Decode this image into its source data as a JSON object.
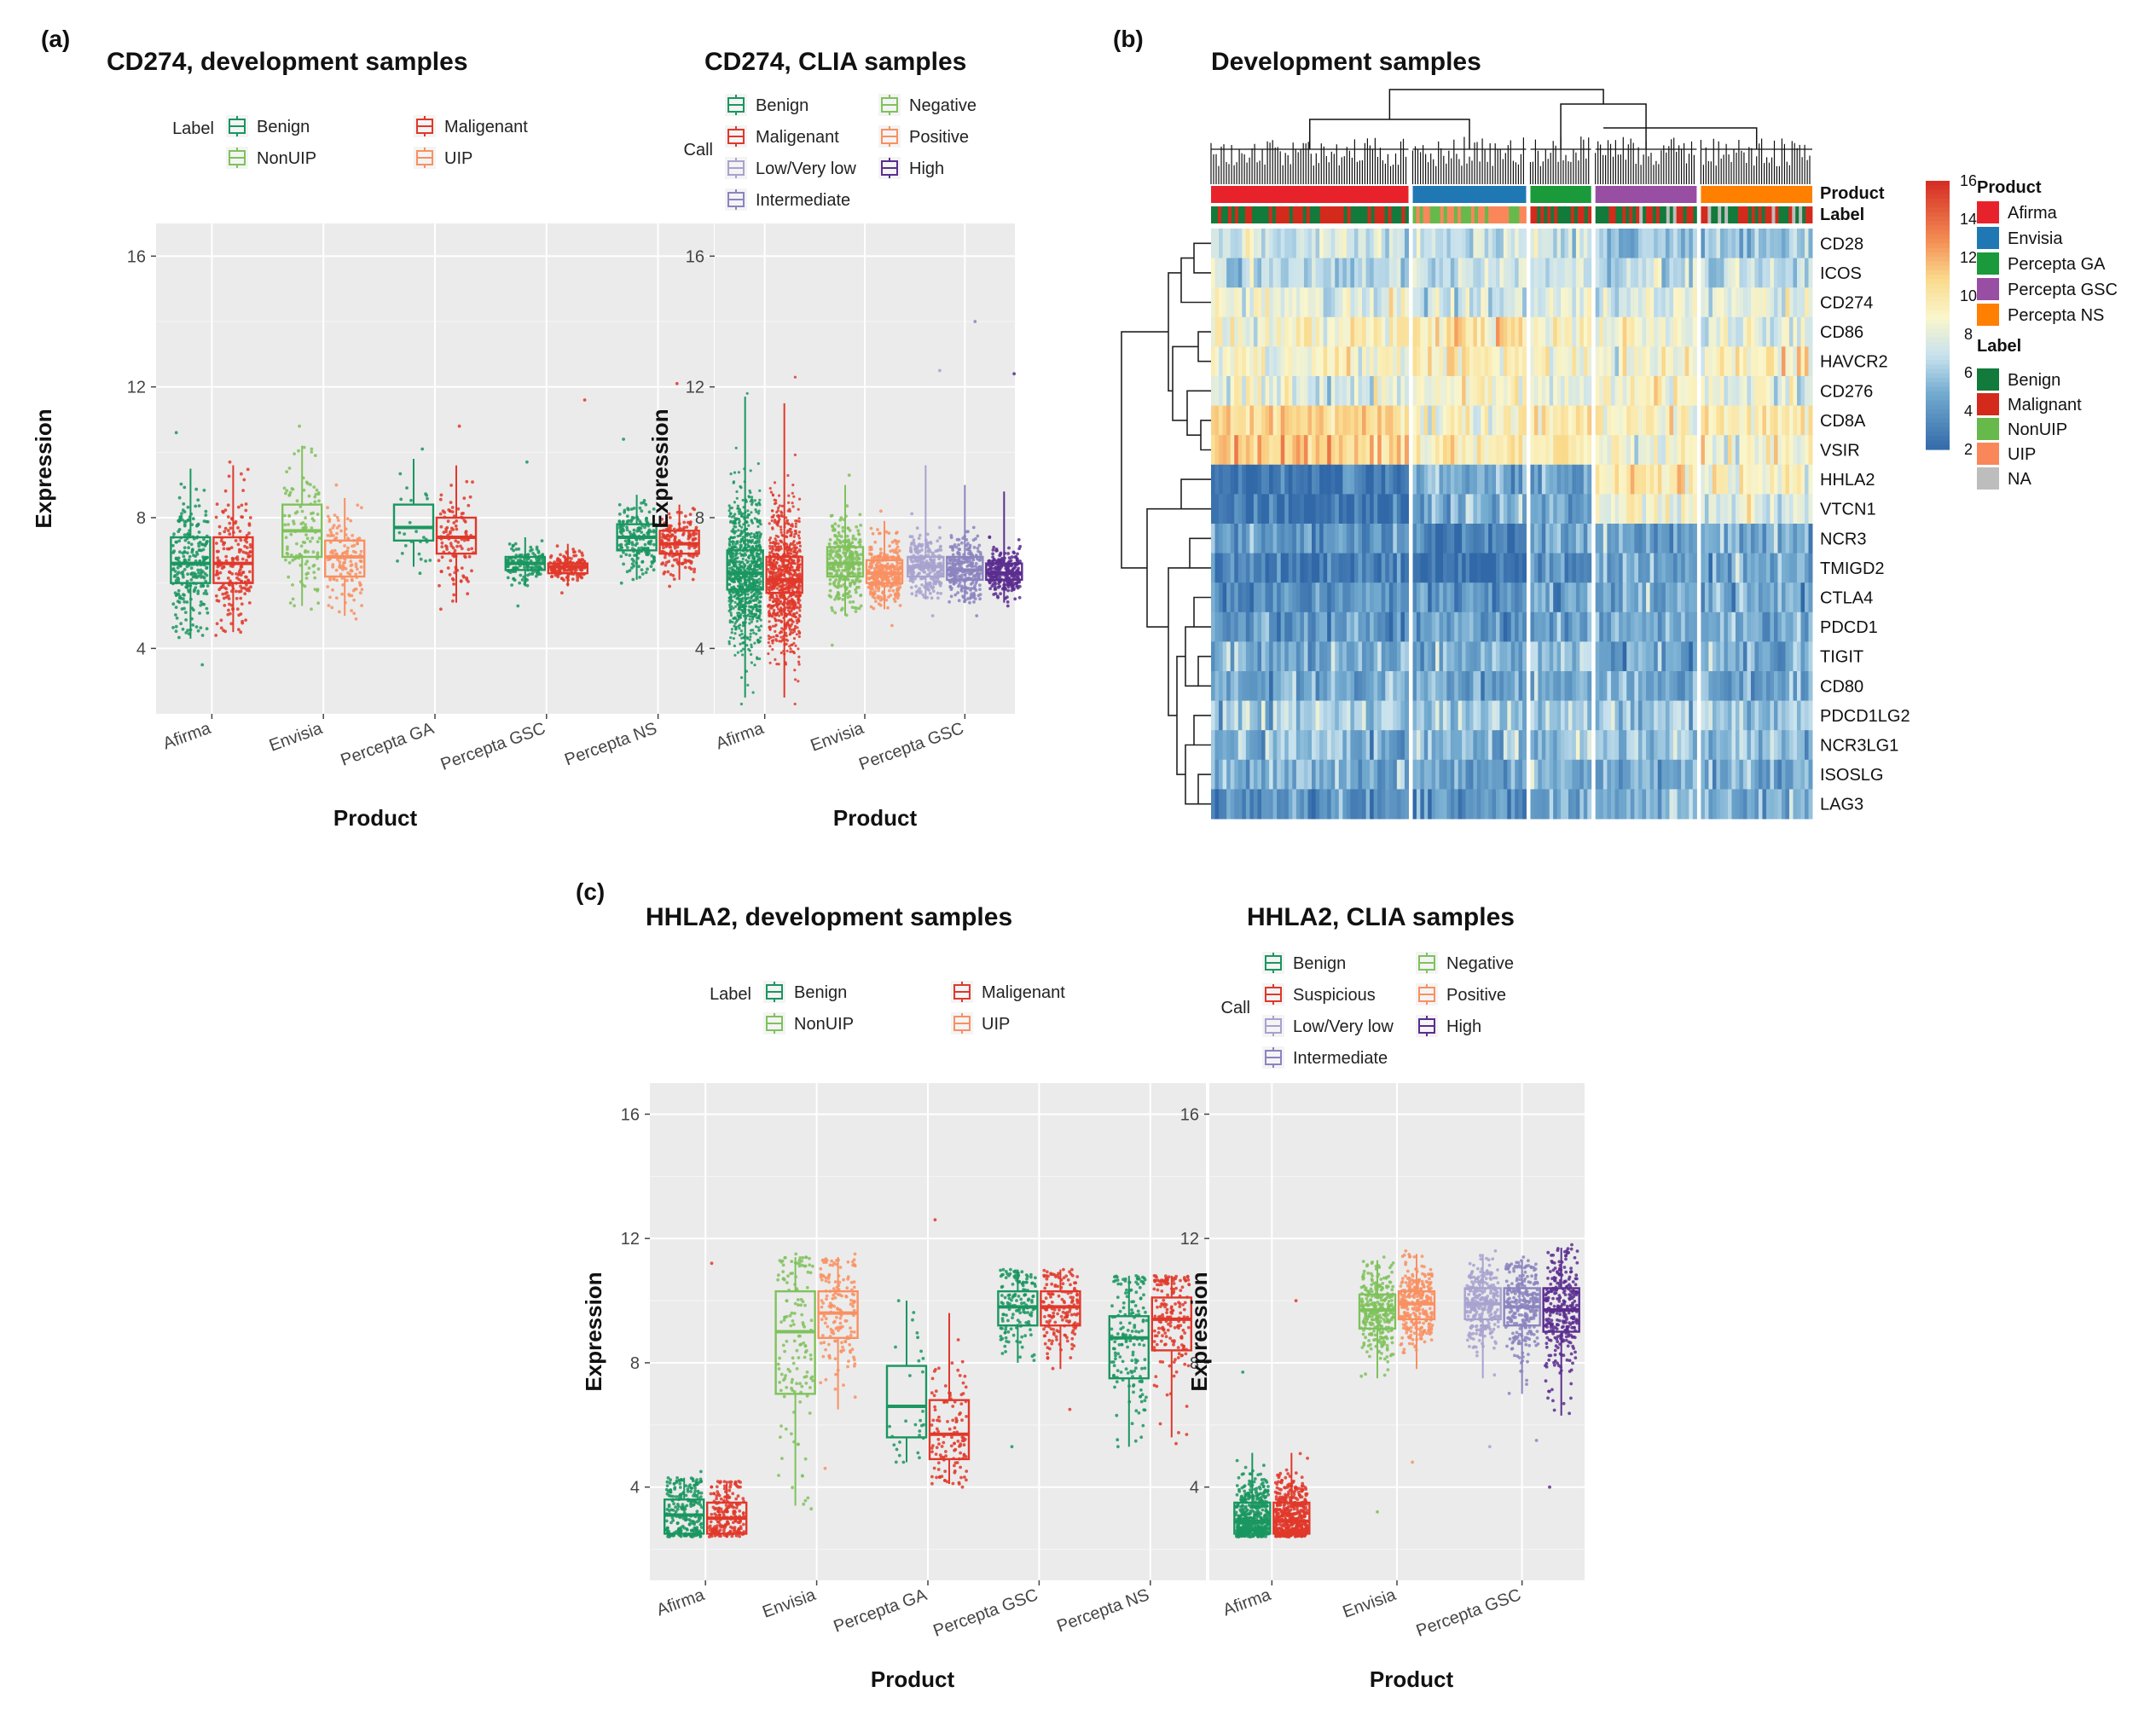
{
  "figure": {
    "panel_labels": [
      "(a)",
      "(b)",
      "(c)"
    ]
  },
  "colors": {
    "benign": "#1a9660",
    "malignant": "#e0382a",
    "nonuip": "#7fc25c",
    "uip": "#f99062",
    "low": "#a8a2cf",
    "intermediate": "#8b84bf",
    "high": "#5a2d8f",
    "panel_bg": "#ebebeb",
    "grid": "#ffffff"
  },
  "chart_data": [
    {
      "id": "a1",
      "type": "box",
      "title": "CD274, development samples",
      "xlabel": "Product",
      "ylabel": "Expression",
      "ylim": [
        2,
        17
      ],
      "yticks": [
        4,
        8,
        12,
        16
      ],
      "categories": [
        "Afirma",
        "Envisia",
        "Percepta GA",
        "Percepta GSC",
        "Percepta NS"
      ],
      "legend": {
        "title": "Label",
        "entries": [
          {
            "label": "Benign",
            "color": "benign"
          },
          {
            "label": "Maligenant",
            "color": "malignant"
          },
          {
            "label": "NonUIP",
            "color": "nonuip"
          },
          {
            "label": "UIP",
            "color": "uip"
          }
        ]
      },
      "boxes": [
        {
          "cat": 0,
          "color": "benign",
          "q1": 6.0,
          "med": 6.6,
          "q3": 7.4,
          "lo": 4.3,
          "hi": 9.5,
          "n": 260,
          "ptMin": 3.5,
          "ptMax": 10.6
        },
        {
          "cat": 0,
          "color": "malignant",
          "q1": 6.0,
          "med": 6.6,
          "q3": 7.4,
          "lo": 4.5,
          "hi": 9.6,
          "n": 200,
          "ptMin": 4.4,
          "ptMax": 9.7
        },
        {
          "cat": 1,
          "color": "nonuip",
          "q1": 6.8,
          "med": 7.6,
          "q3": 8.4,
          "lo": 5.3,
          "hi": 10.2,
          "n": 120,
          "ptMin": 5.2,
          "ptMax": 10.8
        },
        {
          "cat": 1,
          "color": "uip",
          "q1": 6.2,
          "med": 6.8,
          "q3": 7.3,
          "lo": 5.0,
          "hi": 8.6,
          "n": 140,
          "ptMin": 4.9,
          "ptMax": 9.0
        },
        {
          "cat": 2,
          "color": "benign",
          "q1": 7.3,
          "med": 7.7,
          "q3": 8.4,
          "lo": 6.5,
          "hi": 9.8,
          "n": 25,
          "ptMin": 6.3,
          "ptMax": 10.1
        },
        {
          "cat": 2,
          "color": "malignant",
          "q1": 6.9,
          "med": 7.4,
          "q3": 8.0,
          "lo": 5.4,
          "hi": 9.6,
          "n": 110,
          "ptMin": 5.2,
          "ptMax": 10.8
        },
        {
          "cat": 3,
          "color": "benign",
          "q1": 6.4,
          "med": 6.6,
          "q3": 6.8,
          "lo": 5.9,
          "hi": 7.4,
          "n": 140,
          "ptMin": 5.3,
          "ptMax": 9.7
        },
        {
          "cat": 3,
          "color": "malignant",
          "q1": 6.3,
          "med": 6.5,
          "q3": 6.6,
          "lo": 5.9,
          "hi": 7.2,
          "n": 160,
          "ptMin": 5.7,
          "ptMax": 11.6
        },
        {
          "cat": 4,
          "color": "benign",
          "q1": 7.0,
          "med": 7.4,
          "q3": 7.8,
          "lo": 6.1,
          "hi": 8.7,
          "n": 170,
          "ptMin": 6.0,
          "ptMax": 10.4
        },
        {
          "cat": 4,
          "color": "malignant",
          "q1": 6.9,
          "med": 7.2,
          "q3": 7.6,
          "lo": 6.1,
          "hi": 8.4,
          "n": 170,
          "ptMin": 5.9,
          "ptMax": 12.1
        }
      ]
    },
    {
      "id": "a2",
      "type": "box",
      "title": "CD274, CLIA samples",
      "xlabel": "Product",
      "ylabel": "Expression",
      "ylim": [
        2,
        17
      ],
      "yticks": [
        4,
        8,
        12,
        16
      ],
      "categories": [
        "Afirma",
        "Envisia",
        "Percepta GSC"
      ],
      "legend": {
        "title": "Call",
        "entries": [
          {
            "label": "Benign",
            "color": "benign"
          },
          {
            "label": "Negative",
            "color": "nonuip"
          },
          {
            "label": "Maligenant",
            "color": "malignant"
          },
          {
            "label": "Positive",
            "color": "uip"
          },
          {
            "label": "Low/Very low",
            "color": "low"
          },
          {
            "label": "High",
            "color": "high"
          },
          {
            "label": "Intermediate",
            "color": "intermediate"
          }
        ]
      },
      "boxes": [
        {
          "cat": 0,
          "color": "benign",
          "q1": 5.8,
          "med": 6.3,
          "q3": 7.0,
          "lo": 2.5,
          "hi": 11.7,
          "n": 900,
          "ptMin": 2.3,
          "ptMax": 11.8
        },
        {
          "cat": 0,
          "color": "malignant",
          "q1": 5.7,
          "med": 6.1,
          "q3": 6.8,
          "lo": 2.5,
          "hi": 11.5,
          "n": 900,
          "ptMin": 2.3,
          "ptMax": 12.3
        },
        {
          "cat": 1,
          "color": "nonuip",
          "q1": 6.2,
          "med": 6.6,
          "q3": 7.1,
          "lo": 5.0,
          "hi": 9.0,
          "n": 300,
          "ptMin": 4.1,
          "ptMax": 9.3
        },
        {
          "cat": 1,
          "color": "uip",
          "q1": 6.0,
          "med": 6.3,
          "q3": 6.7,
          "lo": 5.2,
          "hi": 7.9,
          "n": 300,
          "ptMin": 4.7,
          "ptMax": 8.2
        },
        {
          "cat": 2,
          "color": "low",
          "q1": 6.2,
          "med": 6.5,
          "q3": 6.8,
          "lo": 5.5,
          "hi": 9.6,
          "n": 260,
          "ptMin": 5.0,
          "ptMax": 12.5
        },
        {
          "cat": 2,
          "color": "intermediate",
          "q1": 6.1,
          "med": 6.4,
          "q3": 6.8,
          "lo": 5.4,
          "hi": 9.0,
          "n": 260,
          "ptMin": 5.0,
          "ptMax": 14.0
        },
        {
          "cat": 2,
          "color": "high",
          "q1": 6.1,
          "med": 6.3,
          "q3": 6.6,
          "lo": 5.4,
          "hi": 8.8,
          "n": 260,
          "ptMin": 5.3,
          "ptMax": 12.4
        }
      ]
    },
    {
      "id": "b",
      "type": "heatmap",
      "title": "Development samples",
      "rows": [
        "CD28",
        "ICOS",
        "CD274",
        "CD86",
        "HAVCR2",
        "CD276",
        "CD8A",
        "VSIR",
        "HHLA2",
        "VTCN1",
        "NCR3",
        "TMIGD2",
        "CTLA4",
        "PDCD1",
        "TIGIT",
        "CD80",
        "PDCD1LG2",
        "NCR3LG1",
        "ISOSLG",
        "LAG3"
      ],
      "column_groups": [
        {
          "product": "Afirma",
          "color": "#e8222b",
          "weight": 195,
          "row_levels": [
            7,
            7,
            8,
            9,
            9,
            8,
            11,
            11,
            2.5,
            2.5,
            4,
            3,
            4,
            4,
            5,
            5,
            6,
            5,
            5,
            4
          ]
        },
        {
          "product": "Envisia",
          "color": "#1f78b4",
          "weight": 112,
          "row_levels": [
            7,
            7,
            7,
            10,
            10,
            9,
            9,
            10,
            5,
            5,
            3,
            2.5,
            4,
            4,
            5,
            5,
            6,
            5,
            5,
            4
          ]
        },
        {
          "product": "Percepta GA",
          "color": "#1a9a3a",
          "weight": 60,
          "row_levels": [
            7,
            7,
            8,
            9,
            9,
            8,
            10,
            10,
            5,
            5,
            5,
            4,
            5,
            5,
            6,
            5,
            6,
            6,
            5,
            5
          ]
        },
        {
          "product": "Percepta GSC",
          "color": "#984ea3",
          "weight": 100,
          "row_levels": [
            6,
            7,
            8,
            9,
            9,
            9,
            9,
            9,
            10,
            9,
            5,
            5,
            5,
            5,
            5,
            5,
            6,
            6,
            5,
            5
          ]
        },
        {
          "product": "Percepta NS",
          "color": "#ff7f00",
          "weight": 110,
          "row_levels": [
            6,
            7,
            8,
            8,
            9,
            8,
            10,
            9,
            9,
            8,
            5,
            5,
            5,
            5,
            5,
            5,
            6,
            6,
            5,
            5
          ]
        }
      ],
      "annotation_labels": {
        "product": "Product",
        "label": "Label"
      },
      "colorbar": {
        "min": 2,
        "max": 16,
        "ticks": [
          2,
          4,
          6,
          8,
          10,
          12,
          14,
          16
        ]
      },
      "legend": {
        "product_title": "Product",
        "products": [
          {
            "label": "Afirma",
            "color": "#e8222b"
          },
          {
            "label": "Envisia",
            "color": "#1f78b4"
          },
          {
            "label": "Percepta GA",
            "color": "#1a9a3a"
          },
          {
            "label": "Percepta GSC",
            "color": "#984ea3"
          },
          {
            "label": "Percepta NS",
            "color": "#ff7f00"
          }
        ],
        "label_title": "Label",
        "labels": [
          {
            "label": "Benign",
            "color": "#127a3b"
          },
          {
            "label": "Malignant",
            "color": "#d42a1c"
          },
          {
            "label": "NonUIP",
            "color": "#67b94b"
          },
          {
            "label": "UIP",
            "color": "#f9875a"
          },
          {
            "label": "NA",
            "color": "#bdbdbd"
          }
        ]
      }
    },
    {
      "id": "c1",
      "type": "box",
      "title": "HHLA2, development samples",
      "xlabel": "Product",
      "ylabel": "Expression",
      "ylim": [
        1,
        17
      ],
      "yticks": [
        4,
        8,
        12,
        16
      ],
      "categories": [
        "Afirma",
        "Envisia",
        "Percepta GA",
        "Percepta GSC",
        "Percepta NS"
      ],
      "legend": {
        "title": "Label",
        "entries": [
          {
            "label": "Benign",
            "color": "benign"
          },
          {
            "label": "Maligenant",
            "color": "malignant"
          },
          {
            "label": "NonUIP",
            "color": "nonuip"
          },
          {
            "label": "UIP",
            "color": "uip"
          }
        ]
      },
      "boxes": [
        {
          "cat": 0,
          "color": "benign",
          "q1": 2.5,
          "med": 3.1,
          "q3": 3.6,
          "lo": 2.4,
          "hi": 4.3,
          "n": 240,
          "ptMin": 2.4,
          "ptMax": 4.5
        },
        {
          "cat": 0,
          "color": "malignant",
          "q1": 2.5,
          "med": 3.0,
          "q3": 3.5,
          "lo": 2.4,
          "hi": 4.2,
          "n": 200,
          "ptMin": 2.4,
          "ptMax": 11.2
        },
        {
          "cat": 1,
          "color": "nonuip",
          "q1": 7.0,
          "med": 9.0,
          "q3": 10.3,
          "lo": 3.4,
          "hi": 11.4,
          "n": 140,
          "ptMin": 3.3,
          "ptMax": 11.5
        },
        {
          "cat": 1,
          "color": "uip",
          "q1": 8.8,
          "med": 9.6,
          "q3": 10.3,
          "lo": 6.5,
          "hi": 11.4,
          "n": 160,
          "ptMin": 4.6,
          "ptMax": 11.5
        },
        {
          "cat": 2,
          "color": "benign",
          "q1": 5.6,
          "med": 6.6,
          "q3": 7.9,
          "lo": 4.8,
          "hi": 10.0,
          "n": 30,
          "ptMin": 4.8,
          "ptMax": 10.0
        },
        {
          "cat": 2,
          "color": "malignant",
          "q1": 4.9,
          "med": 5.7,
          "q3": 6.8,
          "lo": 4.1,
          "hi": 9.6,
          "n": 120,
          "ptMin": 4.0,
          "ptMax": 12.6
        },
        {
          "cat": 3,
          "color": "benign",
          "q1": 9.2,
          "med": 9.8,
          "q3": 10.3,
          "lo": 8.0,
          "hi": 11.0,
          "n": 150,
          "ptMin": 5.3,
          "ptMax": 11.0
        },
        {
          "cat": 3,
          "color": "malignant",
          "q1": 9.2,
          "med": 9.8,
          "q3": 10.3,
          "lo": 7.8,
          "hi": 11.0,
          "n": 160,
          "ptMin": 6.5,
          "ptMax": 11.0
        },
        {
          "cat": 4,
          "color": "benign",
          "q1": 7.5,
          "med": 8.8,
          "q3": 9.5,
          "lo": 5.3,
          "hi": 10.8,
          "n": 160,
          "ptMin": 5.3,
          "ptMax": 10.8
        },
        {
          "cat": 4,
          "color": "malignant",
          "q1": 8.4,
          "med": 9.4,
          "q3": 10.1,
          "lo": 5.6,
          "hi": 10.8,
          "n": 170,
          "ptMin": 5.4,
          "ptMax": 10.8
        }
      ]
    },
    {
      "id": "c2",
      "type": "box",
      "title": "HHLA2, CLIA samples",
      "xlabel": "Product",
      "ylabel": "Expression",
      "ylim": [
        1,
        17
      ],
      "yticks": [
        4,
        8,
        12,
        16
      ],
      "categories": [
        "Afirma",
        "Envisia",
        "Percepta GSC"
      ],
      "legend": {
        "title": "Call",
        "entries": [
          {
            "label": "Benign",
            "color": "benign"
          },
          {
            "label": "Negative",
            "color": "nonuip"
          },
          {
            "label": "Suspicious",
            "color": "malignant"
          },
          {
            "label": "Positive",
            "color": "uip"
          },
          {
            "label": "Low/Very low",
            "color": "low"
          },
          {
            "label": "High",
            "color": "high"
          },
          {
            "label": "Intermediate",
            "color": "intermediate"
          }
        ]
      },
      "boxes": [
        {
          "cat": 0,
          "color": "benign",
          "q1": 2.5,
          "med": 2.9,
          "q3": 3.5,
          "lo": 2.4,
          "hi": 5.1,
          "n": 500,
          "ptMin": 2.4,
          "ptMax": 7.7
        },
        {
          "cat": 0,
          "color": "malignant",
          "q1": 2.5,
          "med": 2.9,
          "q3": 3.5,
          "lo": 2.4,
          "hi": 5.1,
          "n": 500,
          "ptMin": 2.4,
          "ptMax": 10.0
        },
        {
          "cat": 1,
          "color": "nonuip",
          "q1": 9.1,
          "med": 9.7,
          "q3": 10.2,
          "lo": 7.5,
          "hi": 11.3,
          "n": 300,
          "ptMin": 3.2,
          "ptMax": 11.4
        },
        {
          "cat": 1,
          "color": "uip",
          "q1": 9.4,
          "med": 9.9,
          "q3": 10.3,
          "lo": 7.8,
          "hi": 11.5,
          "n": 300,
          "ptMin": 4.8,
          "ptMax": 11.6
        },
        {
          "cat": 2,
          "color": "low",
          "q1": 9.4,
          "med": 9.9,
          "q3": 10.4,
          "lo": 7.5,
          "hi": 11.5,
          "n": 280,
          "ptMin": 5.3,
          "ptMax": 11.6
        },
        {
          "cat": 2,
          "color": "intermediate",
          "q1": 9.2,
          "med": 9.8,
          "q3": 10.4,
          "lo": 7.0,
          "hi": 11.3,
          "n": 280,
          "ptMin": 5.5,
          "ptMax": 11.4
        },
        {
          "cat": 2,
          "color": "high",
          "q1": 9.0,
          "med": 9.7,
          "q3": 10.4,
          "lo": 6.3,
          "hi": 11.7,
          "n": 300,
          "ptMin": 4.0,
          "ptMax": 11.8
        }
      ]
    }
  ]
}
